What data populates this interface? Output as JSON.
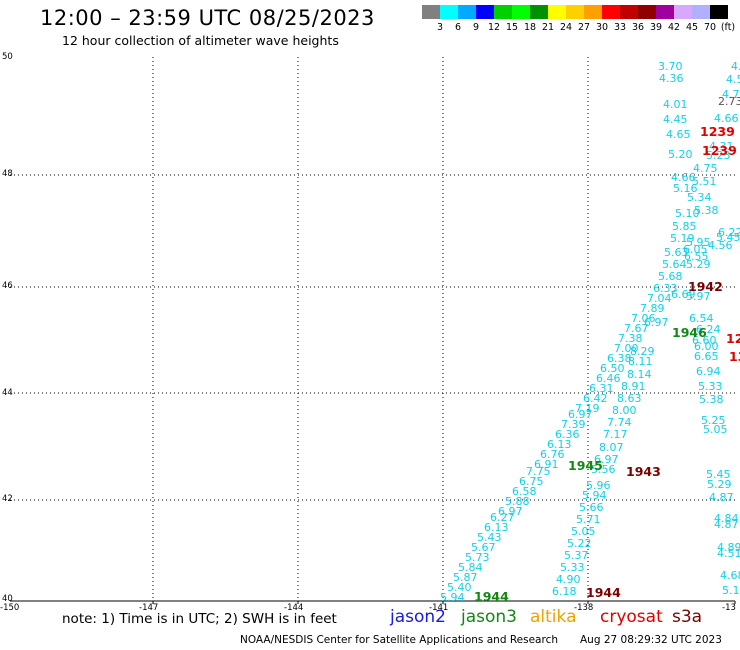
{
  "header": {
    "title": "12:00 – 23:59 UTC 08/25/2023",
    "subtitle": "12 hour collection of altimeter wave heights"
  },
  "colorbar": {
    "colors": [
      "#808080",
      "#00ffff",
      "#00aaff",
      "#0000ff",
      "#00d000",
      "#00ff00",
      "#009000",
      "#ffff00",
      "#ffd000",
      "#ffa000",
      "#ff0000",
      "#c00000",
      "#900000",
      "#a000a0",
      "#d8a8ff",
      "#b0b0ff",
      "#000000"
    ],
    "labels": [
      "3",
      "6",
      "9",
      "12",
      "15",
      "18",
      "21",
      "24",
      "27",
      "30",
      "33",
      "36",
      "39",
      "42",
      "45",
      "70",
      "(ft)"
    ]
  },
  "map": {
    "latitudes": [
      "50",
      "48",
      "46",
      "44",
      "42",
      "40"
    ],
    "longitudes": [
      "-150",
      "-147",
      "-144",
      "-141",
      "-138",
      "-13"
    ]
  },
  "wave_heights": {
    "track_a": [
      "5.94",
      "5.40",
      "5.87",
      "5.84",
      "5.73",
      "5.67",
      "5.43",
      "6.13",
      "6.27",
      "6.97",
      "5.88",
      "6.58",
      "6.75",
      "7.75",
      "6.91",
      "6.76",
      "6.13",
      "6.36",
      "7.39",
      "6.97",
      "7.19",
      "6.42",
      "6.31",
      "6.46",
      "6.50",
      "6.38",
      "7.00",
      "7.38",
      "7.67",
      "7.06",
      "7.89",
      "7.04",
      "6.33",
      "5.68",
      "5.64",
      "5.63",
      "5.19",
      "5.85",
      "5.10",
      "5.16",
      "4.66",
      "5.20",
      "4.65",
      "4.45",
      "4.01",
      "4.36",
      "3.70"
    ],
    "track_b": [
      "6.18",
      "4.90",
      "5.33",
      "5.37",
      "5.22",
      "5.05",
      "5.71",
      "5.66",
      "5.94",
      "5.96",
      "5.56",
      "6.97",
      "8.07",
      "7.17",
      "7.74",
      "8.00",
      "8.63",
      "8.91",
      "8.14",
      "8.11",
      "8.29",
      "6.97",
      "6.69",
      "5.97",
      "6.00",
      "6.54",
      "6.24",
      "6.60",
      "5.29",
      "6.05",
      "6.55",
      "5.95",
      "4.56",
      "6.22",
      "5.45",
      "5.38",
      "5.51",
      "5.34",
      "4.75",
      "5.23",
      "4.31",
      "4.66",
      "4.70",
      "4.5",
      "4."
    ],
    "track_c": [
      "6.65",
      "6.94",
      "5.33",
      "5.38",
      "5.25",
      "5.05",
      "5.45",
      "5.29",
      "4.87",
      "4.84",
      "4.87",
      "4.89",
      "4.51",
      "4.68",
      "5.1"
    ],
    "gray": [
      "2.73"
    ]
  },
  "time_labels": [
    "1944",
    "1944",
    "1945",
    "1943",
    "1946",
    "1942",
    "1239",
    "1239",
    "12",
    "13"
  ],
  "note": "note:  1) Time is in UTC;  2) SWH is in feet",
  "satellites": [
    "jason2",
    "jason3",
    "altika",
    "cryosat",
    "s3a"
  ],
  "footer": {
    "credit": "NOAA/NESDIS Center for Satellite Applications and Research",
    "timestamp": "Aug 27 08:29:32 UTC 2023"
  }
}
